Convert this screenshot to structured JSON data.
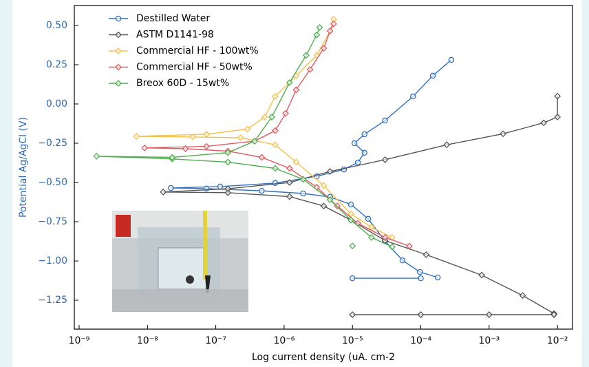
{
  "chart_data": {
    "type": "line",
    "xlabel": "Log current density (uA. cm-2",
    "ylabel": "Potential Ag/AgCl (V)",
    "xscale": "log",
    "xlim": [
      8.5e-10,
      0.0166
    ],
    "ylim": [
      -1.434,
      0.627
    ],
    "xticks": [
      {
        "value": 1e-09,
        "label": "10⁻⁹"
      },
      {
        "value": 1e-08,
        "label": "10⁻⁸"
      },
      {
        "value": 1e-07,
        "label": "10⁻⁷"
      },
      {
        "value": 1e-06,
        "label": "10⁻⁶"
      },
      {
        "value": 1e-05,
        "label": "10⁻⁵"
      },
      {
        "value": 0.0001,
        "label": "10⁻⁴"
      },
      {
        "value": 0.001,
        "label": "10⁻³"
      },
      {
        "value": 0.01,
        "label": "10⁻²"
      }
    ],
    "yticks": [
      {
        "value": 0.5,
        "label": "0.50"
      },
      {
        "value": 0.25,
        "label": "0.25"
      },
      {
        "value": 0,
        "label": "0.00"
      },
      {
        "value": -0.25,
        "label": "−0.25"
      },
      {
        "value": -0.5,
        "label": "−0.50"
      },
      {
        "value": -0.75,
        "label": "−0.75"
      },
      {
        "value": -1,
        "label": "−1.00"
      },
      {
        "value": -1.25,
        "label": "−1.25"
      }
    ],
    "legend": "upper left",
    "series": [
      {
        "name": "Destilled Water",
        "color": "#2f6fbf",
        "marker": "circle",
        "x": [
          0.000177,
          9.7e-05,
          5.4e-05,
          3e-05,
          1.7e-05,
          9.5e-06,
          4.7e-06,
          1.9e-06,
          4.7e-07,
          7.3e-08,
          2.2e-08,
          1.16e-07,
          7.4e-07,
          3e-06,
          7.5e-06,
          1.2e-05,
          1.5e-05,
          1.07e-05,
          1.5e-05,
          3e-05,
          7.7e-05,
          0.00015,
          0.00028,
          null,
          1e-05,
          0.0001
        ],
        "values": [
          -1.105,
          -1.07,
          -0.996,
          -0.873,
          -0.732,
          -0.64,
          -0.592,
          -0.57,
          -0.553,
          -0.539,
          -0.535,
          -0.526,
          -0.504,
          -0.461,
          -0.417,
          -0.373,
          -0.311,
          -0.25,
          -0.193,
          -0.105,
          0.048,
          0.18,
          0.281,
          null,
          -1.11,
          -1.11
        ]
      },
      {
        "name": "ASTM D1141-98",
        "color": "#555555",
        "marker": "diamond",
        "x": [
          0.0089,
          0.0031,
          0.00078,
          0.00012,
          3e-05,
          9.5e-06,
          3.8e-06,
          1.2e-06,
          1.5e-07,
          1.7e-08,
          1.5e-07,
          1.2e-06,
          4.7e-06,
          3e-05,
          0.00024,
          0.0016,
          0.0063,
          0.01,
          0.01,
          null,
          1e-05,
          0.0001,
          0.001,
          0.0089
        ],
        "values": [
          -1.335,
          -1.22,
          -1.09,
          -0.96,
          -0.87,
          -0.74,
          -0.65,
          -0.59,
          -0.565,
          -0.561,
          -0.54,
          -0.5,
          -0.43,
          -0.355,
          -0.26,
          -0.19,
          -0.12,
          -0.083,
          0.05,
          null,
          -1.342,
          -1.342,
          -1.342,
          -1.342
        ]
      },
      {
        "name": "Commercial HF - 100wt%",
        "color": "#f5c04a",
        "marker": "diamond",
        "x": [
          3.8e-05,
          1.9e-05,
          9.5e-06,
          3.8e-06,
          1.5e-06,
          7.4e-07,
          2.3e-07,
          4.6e-08,
          6.9e-09,
          7.3e-08,
          2.9e-07,
          5.2e-07,
          7.4e-07,
          1.5e-06,
          3e-06,
          4.7e-06,
          5.3e-06
        ],
        "values": [
          -0.85,
          -0.785,
          -0.7,
          -0.52,
          -0.37,
          -0.26,
          -0.215,
          -0.21,
          -0.206,
          -0.193,
          -0.16,
          -0.083,
          0.048,
          0.18,
          0.31,
          0.465,
          0.54
        ]
      },
      {
        "name": "Commercial HF - 50wt%",
        "color": "#e05a5f",
        "marker": "diamond",
        "x": [
          6.8e-05,
          3e-05,
          1.2e-05,
          6e-06,
          3e-06,
          1.2e-06,
          4.7e-07,
          1.5e-07,
          3.6e-08,
          9.1e-09,
          7.3e-08,
          3.7e-07,
          7.4e-07,
          1.05e-06,
          1.5e-06,
          2.4e-06,
          3.8e-06,
          4.7e-06,
          5.3e-06
        ],
        "values": [
          -0.905,
          -0.85,
          -0.76,
          -0.65,
          -0.53,
          -0.41,
          -0.34,
          -0.3,
          -0.285,
          -0.28,
          -0.27,
          -0.237,
          -0.17,
          -0.06,
          0.09,
          0.22,
          0.355,
          0.465,
          0.51
        ]
      },
      {
        "name": "Breox 60D - 15wt%",
        "color": "#4fae4f",
        "marker": "diamond",
        "x": [
          3.8e-05,
          1.9e-05,
          9.5e-06,
          4.7e-06,
          1.9e-06,
          7.4e-07,
          1.5e-07,
          2.3e-08,
          1.8e-09,
          2.3e-08,
          1.5e-07,
          3.7e-07,
          6.6e-07,
          1.2e-06,
          2.1e-06,
          3e-06,
          3.3e-06,
          null,
          1e-05
        ],
        "values": [
          -0.91,
          -0.85,
          -0.74,
          -0.61,
          -0.48,
          -0.41,
          -0.37,
          -0.35,
          -0.333,
          -0.34,
          -0.31,
          -0.237,
          -0.083,
          0.136,
          0.31,
          0.44,
          0.487,
          null,
          -0.904
        ]
      }
    ]
  }
}
